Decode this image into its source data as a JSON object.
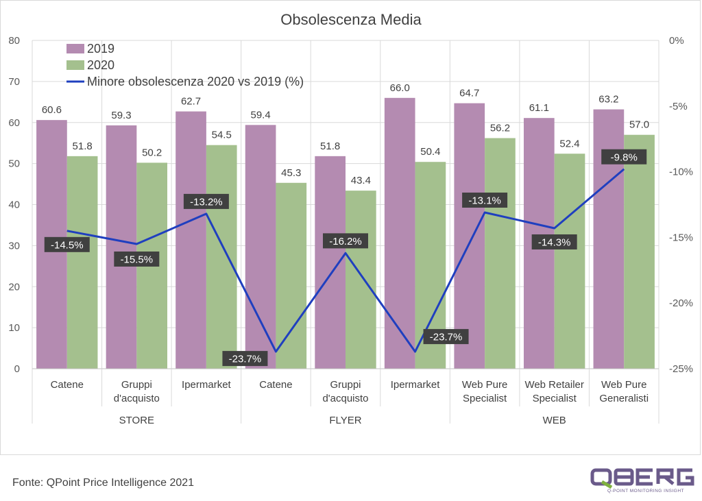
{
  "chart_data": {
    "type": "bar",
    "title": "Obsolescenza Media",
    "categories": [
      "Catene",
      "Gruppi d'acquisto",
      "Ipermarket",
      "Catene",
      "Gruppi d'acquisto",
      "Ipermarket",
      "Web Pure Specialist",
      "Web Retailer Specialist",
      "Web Pure Generalisti"
    ],
    "category_lines": [
      [
        "Catene"
      ],
      [
        "Gruppi",
        "d'acquisto"
      ],
      [
        "Ipermarket"
      ],
      [
        "Catene"
      ],
      [
        "Gruppi",
        "d'acquisto"
      ],
      [
        "Ipermarket"
      ],
      [
        "Web Pure",
        "Specialist"
      ],
      [
        "Web Retailer",
        "Specialist"
      ],
      [
        "Web Pure",
        "Generalisti"
      ]
    ],
    "groups": [
      {
        "label": "STORE",
        "start": 0,
        "end": 2
      },
      {
        "label": "FLYER",
        "start": 3,
        "end": 5
      },
      {
        "label": "WEB",
        "start": 6,
        "end": 8
      }
    ],
    "series": [
      {
        "name": "2019",
        "type": "bar",
        "axis": "left",
        "color": "#b48bb1",
        "values": [
          60.6,
          59.3,
          62.7,
          59.4,
          51.8,
          66.0,
          64.7,
          61.1,
          63.2
        ],
        "labels": [
          "60.6",
          "59.3",
          "62.7",
          "59.4",
          "51.8",
          "66.0",
          "64.7",
          "61.1",
          "63.2"
        ]
      },
      {
        "name": "2020",
        "type": "bar",
        "axis": "left",
        "color": "#a4c08e",
        "values": [
          51.8,
          50.2,
          54.5,
          45.3,
          43.4,
          50.4,
          56.2,
          52.4,
          57.0
        ],
        "labels": [
          "51.8",
          "50.2",
          "54.5",
          "45.3",
          "43.4",
          "50.4",
          "56.2",
          "52.4",
          "57.0"
        ]
      },
      {
        "name": "Minore obsolescenza 2020 vs 2019 (%)",
        "type": "line",
        "axis": "right",
        "color": "#1f3fbf",
        "values": [
          -14.5,
          -15.5,
          -13.2,
          -23.7,
          -16.2,
          -23.7,
          -13.1,
          -14.3,
          -9.8
        ],
        "labels": [
          "-14.5%",
          "-15.5%",
          "-13.2%",
          "-23.7%",
          "-16.2%",
          "-23.7%",
          "-13.1%",
          "-14.3%",
          "-9.8%"
        ]
      }
    ],
    "y_left": {
      "min": 0,
      "max": 80,
      "ticks": [
        0,
        10,
        20,
        30,
        40,
        50,
        60,
        70,
        80
      ],
      "tick_labels": [
        "0",
        "10",
        "20",
        "30",
        "40",
        "50",
        "60",
        "70",
        "80"
      ]
    },
    "y_right": {
      "min": -25,
      "max": 0,
      "ticks": [
        -25,
        -20,
        -15,
        -10,
        -5,
        0
      ],
      "tick_labels": [
        "-25%",
        "-20%",
        "-15%",
        "-10%",
        "-5%",
        "0%"
      ]
    },
    "grid": true,
    "legend": "top-left"
  },
  "footer": {
    "source": "Fonte: QPoint Price Intelligence 2021"
  },
  "logo": {
    "name": "QBERG",
    "tagline": "Q-POINT MONITORING INSIGHT",
    "color": "#6a5a8a",
    "accent": "#7fb03f"
  }
}
